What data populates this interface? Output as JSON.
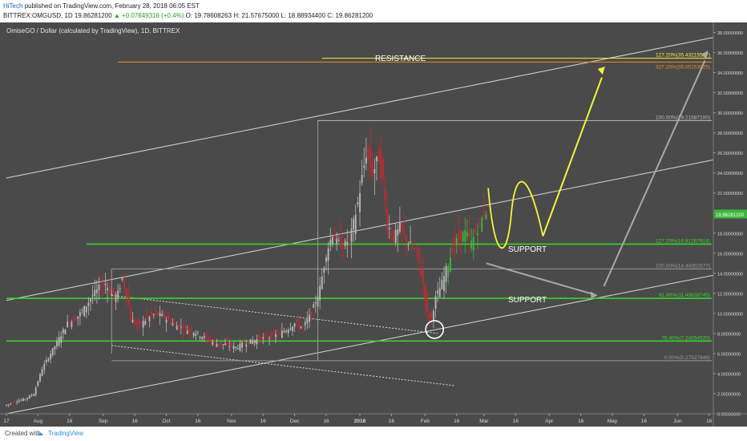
{
  "header": {
    "author": "HiTech",
    "published": "published on TradingView.com, February 28, 2018 06:05 EST",
    "symbol": "BITTREX:OMGUSD, 1D",
    "price": "19.86281200",
    "change": "▲ +0.07849316 (+0.4%)",
    "ohlc": "O: 19.78608263  H: 21.57675000  L: 18.88934400  C: 19.86281200"
  },
  "chart_title": "OmiseGO / Dollar (calculated by TradingView), 1D, BITTREX",
  "annotations": {
    "resistance": "RESISTANCE",
    "support_upper": "SUPPORT",
    "support_lower": "SUPPORT"
  },
  "fib_labels": {
    "f1272_yellow": "127.20%(35.43215527)",
    "f3272": "327.20%(35.05153025)",
    "f100_top": "100.00%(29.21587100)",
    "f1272_green": "127.20%(16.91267914)",
    "f100_mid": "100.00%(14.44302577)",
    "f618": "61.80%(11.49838745)",
    "f764": "76.40%(7.24554520)",
    "f0": "0.00%(5.27527948)"
  },
  "footer": {
    "created_with": "Created with",
    "brand": "TradingView"
  },
  "colors": {
    "background": "#4a4a4a",
    "candle_up": "#b8b8b8",
    "candle_down": "#c8282f",
    "candle_up_green": "#3db73d",
    "support_line": "#39d32a",
    "resistance_yellow": "#f2f23a",
    "resistance_orange": "#f08a24",
    "channel": "#d8d8d8",
    "arrow_yellow": "#f5f53c",
    "arrow_grey": "#a8a8a8",
    "price_badge": "#3db73d"
  },
  "chart_data": {
    "type": "candlestick",
    "symbol": "BITTREX:OMGUSD",
    "interval": "1D",
    "title": "OmiseGO / Dollar (calculated by TradingView), 1D, BITTREX",
    "ylim": [
      0,
      39
    ],
    "y_ticks": [
      "0.00000000",
      "2.00000000",
      "4.00000000",
      "6.00000000",
      "8.00000000",
      "10.00000000",
      "12.00000000",
      "14.00000000",
      "16.00000000",
      "18.00000000",
      "20.00000000",
      "22.00000000",
      "24.00000000",
      "26.00000000",
      "28.00000000",
      "30.00000000",
      "32.00000000",
      "34.00000000",
      "36.00000000",
      "38.00000000"
    ],
    "y_tick_values": [
      0,
      2,
      4,
      6,
      8,
      10,
      12,
      14,
      16,
      18,
      20,
      22,
      24,
      26,
      28,
      30,
      32,
      34,
      36,
      38
    ],
    "x_ticks": [
      {
        "label": "17",
        "day": 0
      },
      {
        "label": "Aug",
        "day": 15
      },
      {
        "label": "16",
        "day": 30
      },
      {
        "label": "Sep",
        "day": 46
      },
      {
        "label": "16",
        "day": 61
      },
      {
        "label": "Oct",
        "day": 76
      },
      {
        "label": "16",
        "day": 91
      },
      {
        "label": "Nov",
        "day": 107
      },
      {
        "label": "16",
        "day": 122
      },
      {
        "label": "Dec",
        "day": 137
      },
      {
        "label": "16",
        "day": 152
      },
      {
        "label": "2018",
        "day": 168
      },
      {
        "label": "16",
        "day": 183
      },
      {
        "label": "Feb",
        "day": 199
      },
      {
        "label": "16",
        "day": 214
      },
      {
        "label": "Mar",
        "day": 227
      },
      {
        "label": "16",
        "day": 242
      },
      {
        "label": "Apr",
        "day": 258
      },
      {
        "label": "16",
        "day": 273
      },
      {
        "label": "May",
        "day": 288
      },
      {
        "label": "16",
        "day": 303
      },
      {
        "label": "Jun",
        "day": 319
      },
      {
        "label": "16",
        "day": 334
      }
    ],
    "x_domain_days": [
      0,
      336
    ],
    "last_price": 19.862812,
    "price_path": [
      [
        0,
        0.8
      ],
      [
        5,
        1.2
      ],
      [
        10,
        1.5
      ],
      [
        14,
        2.0
      ],
      [
        18,
        4.5
      ],
      [
        22,
        6.0
      ],
      [
        26,
        7.5
      ],
      [
        30,
        9.0
      ],
      [
        34,
        9.5
      ],
      [
        38,
        10.5
      ],
      [
        42,
        11.8
      ],
      [
        45,
        12.5
      ],
      [
        48,
        13.0
      ],
      [
        50,
        12.2
      ],
      [
        52,
        11.6
      ],
      [
        54,
        12.0
      ],
      [
        56,
        13.5
      ],
      [
        58,
        12.0
      ],
      [
        60,
        9.5
      ],
      [
        62,
        9.0
      ],
      [
        64,
        8.8
      ],
      [
        68,
        9.5
      ],
      [
        72,
        10.0
      ],
      [
        76,
        9.6
      ],
      [
        80,
        9.0
      ],
      [
        85,
        8.5
      ],
      [
        90,
        8.2
      ],
      [
        95,
        7.6
      ],
      [
        100,
        7.0
      ],
      [
        105,
        6.9
      ],
      [
        110,
        6.6
      ],
      [
        115,
        7.1
      ],
      [
        120,
        7.4
      ],
      [
        125,
        7.6
      ],
      [
        130,
        7.9
      ],
      [
        134,
        8.4
      ],
      [
        138,
        9.0
      ],
      [
        142,
        8.6
      ],
      [
        146,
        10.0
      ],
      [
        150,
        12.5
      ],
      [
        153,
        16.0
      ],
      [
        156,
        18.0
      ],
      [
        158,
        17.0
      ],
      [
        162,
        16.8
      ],
      [
        165,
        18.0
      ],
      [
        168,
        21.0
      ],
      [
        170,
        23.5
      ],
      [
        172,
        26.0
      ],
      [
        175,
        24.0
      ],
      [
        178,
        25.5
      ],
      [
        180,
        23.0
      ],
      [
        182,
        19.0
      ],
      [
        185,
        17.5
      ],
      [
        188,
        18.5
      ],
      [
        192,
        17.0
      ],
      [
        196,
        16.0
      ],
      [
        199,
        13.0
      ],
      [
        201,
        10.0
      ],
      [
        203,
        9.5
      ],
      [
        205,
        11.5
      ],
      [
        208,
        13.0
      ],
      [
        211,
        15.0
      ],
      [
        213,
        16.5
      ],
      [
        216,
        17.5
      ],
      [
        219,
        18.0
      ],
      [
        222,
        17.0
      ],
      [
        225,
        18.5
      ],
      [
        228,
        19.86
      ]
    ],
    "horizontal_levels": [
      {
        "label": "127.20%(35.43215527)",
        "value": 35.43,
        "color": "#f2f23a"
      },
      {
        "label": "327.20%(35.05153025)",
        "value": 35.05,
        "color": "#f08a24"
      },
      {
        "label": "100.00%(29.21587100)",
        "value": 29.22,
        "color": "#bdbdbd"
      },
      {
        "label": "127.20%(16.91267914)",
        "value": 16.91,
        "color": "#39d32a"
      },
      {
        "label": "100.00%(14.44302577)",
        "value": 14.44,
        "color": "#9a9a9a"
      },
      {
        "label": "61.80%(11.49838745)",
        "value": 11.5,
        "color": "#39d32a"
      },
      {
        "label": "76.40%(7.24554520)",
        "value": 7.25,
        "color": "#39d32a"
      },
      {
        "label": "0.00%(5.27527948)",
        "value": 5.28,
        "color": "#9a9a9a"
      }
    ],
    "channel": {
      "upper_start": [
        0,
        23.5
      ],
      "upper_end": [
        336,
        37.5
      ],
      "middle_start": [
        0,
        11.3
      ],
      "middle_end": [
        336,
        25.3
      ],
      "lower_start": [
        0,
        0.0
      ],
      "lower_end": [
        336,
        13.8
      ]
    },
    "annotations": [
      "RESISTANCE",
      "SUPPORT",
      "SUPPORT"
    ]
  }
}
